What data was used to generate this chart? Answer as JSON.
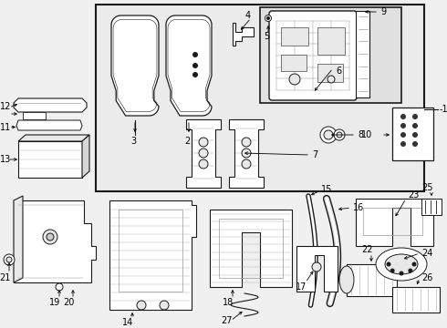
{
  "bg_color": "#f0f0f0",
  "line_color": "#1a1a1a",
  "white": "#ffffff",
  "light_gray": "#e8e8e8",
  "figsize": [
    4.9,
    3.6
  ],
  "dpi": 100
}
